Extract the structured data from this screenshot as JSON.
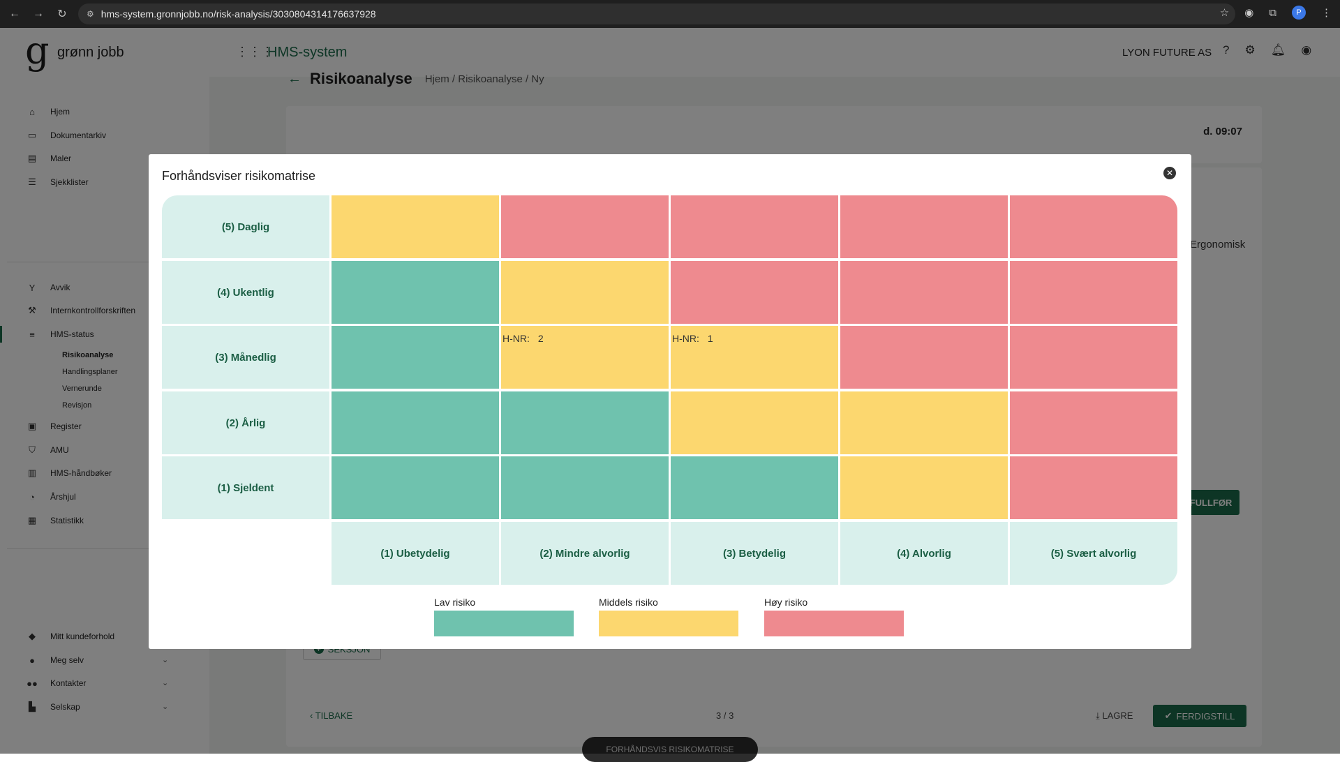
{
  "browser": {
    "url": "hms-system.gronnjobb.no/risk-analysis/3030804314176637928"
  },
  "header": {
    "logo_letter": "g",
    "logo_text": "grønn jobb",
    "app_title": "HMS-system",
    "company": "LYON FUTURE AS"
  },
  "sidebar": {
    "top_items": [
      {
        "label": "Hjem",
        "icon": "home-icon"
      },
      {
        "label": "Dokumentarkiv",
        "icon": "folder-icon"
      },
      {
        "label": "Maler",
        "icon": "document-icon"
      },
      {
        "label": "Sjekklister",
        "icon": "checklist-icon"
      }
    ],
    "mid_items": [
      {
        "label": "Avvik",
        "icon": "fork-icon"
      },
      {
        "label": "Internkontrollforskriften",
        "icon": "gavel-icon"
      },
      {
        "label": "HMS-status",
        "icon": "database-icon"
      }
    ],
    "sub_items": [
      "Risikoanalyse",
      "Handlingsplaner",
      "Vernerunde",
      "Revisjon"
    ],
    "lower_items": [
      {
        "label": "Register",
        "icon": "briefcase-icon"
      },
      {
        "label": "AMU",
        "icon": "shield-icon"
      },
      {
        "label": "HMS-håndbøker",
        "icon": "book-icon"
      },
      {
        "label": "Årshjul",
        "icon": "cycle-icon"
      },
      {
        "label": "Statistikk",
        "icon": "dashboard-icon"
      }
    ],
    "bottom_items": [
      {
        "label": "Mitt kundeforhold",
        "icon": "diamond-icon"
      },
      {
        "label": "Meg selv",
        "icon": "person-icon"
      },
      {
        "label": "Kontakter",
        "icon": "people-icon"
      },
      {
        "label": "Selskap",
        "icon": "building-icon"
      }
    ]
  },
  "page": {
    "title": "Risikoanalyse",
    "breadcrumb": "Hjem  /  Risikoanalyse  /  Ny",
    "saved_text": "d. 09:07",
    "ergonomisk": "Ergonomisk",
    "fullfor": "FULLFØR",
    "seksjon_label": "SEKSJON",
    "tilbake_label": "TILBAKE",
    "pager": "3 / 3",
    "lagre_label": "LAGRE",
    "ferdigstill_label": "FERDIGSTILL",
    "preview_label": "FORHÅNDSVIS RISIKOMATRISE"
  },
  "modal": {
    "title": "Forhåndsviser risikomatrise",
    "rows": [
      {
        "label": "(5) Daglig",
        "levels": [
          "mid",
          "high",
          "high",
          "high",
          "high"
        ]
      },
      {
        "label": "(4) Ukentlig",
        "levels": [
          "low",
          "mid",
          "high",
          "high",
          "high"
        ]
      },
      {
        "label": "(3) Månedlig",
        "levels": [
          "low",
          "mid",
          "mid",
          "high",
          "high"
        ]
      },
      {
        "label": "(2) Årlig",
        "levels": [
          "low",
          "low",
          "mid",
          "mid",
          "high"
        ]
      },
      {
        "label": "(1) Sjeldent",
        "levels": [
          "low",
          "low",
          "low",
          "mid",
          "high"
        ]
      }
    ],
    "columns": [
      "(1) Ubetydelig",
      "(2) Mindre alvorlig",
      "(3) Betydelig",
      "(4) Alvorlig",
      "(5) Svært alvorlig"
    ],
    "hazards": [
      {
        "row": 2,
        "col": 1,
        "prefix": "H-NR:",
        "value": "2"
      },
      {
        "row": 2,
        "col": 2,
        "prefix": "H-NR:",
        "value": "1"
      }
    ],
    "legend": [
      {
        "label": "Lav risiko",
        "level": "low"
      },
      {
        "label": "Middels risiko",
        "level": "mid"
      },
      {
        "label": "Høy risiko",
        "level": "high"
      }
    ],
    "colors": {
      "low": "#6fc2ae",
      "mid": "#fcd76f",
      "high": "#ee8a8f",
      "label_bg": "#d9f0ec",
      "accent": "#1b6b4a"
    }
  }
}
